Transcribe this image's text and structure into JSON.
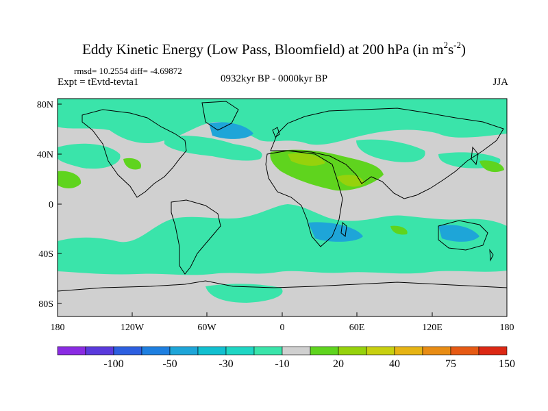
{
  "title": {
    "main": "Eddy Kinetic Energy (Low Pass, Bloomfield) at 200 hPa (in m",
    "exp1": "2",
    "mid": "s",
    "exp2": "-2",
    "close": ")"
  },
  "stats": "rmsd= 10.2554 diff= -4.69872",
  "expt": "Expt = tEvtd-tevta1",
  "period": "0932kyr BP - 0000kyr BP",
  "season": "JJA",
  "lat_labels": [
    "80N",
    "40N",
    "0",
    "40S",
    "80S"
  ],
  "lon_labels": [
    "180",
    "120W",
    "60W",
    "0",
    "60E",
    "120E",
    "180"
  ],
  "colorbar": {
    "colors": [
      "#8a2be2",
      "#5a3adc",
      "#2d5fe0",
      "#1e7fe0",
      "#1ea5d8",
      "#12c0d0",
      "#1fd6c4",
      "#3ae4aa",
      "#d0d0d0",
      "#5fd41e",
      "#96d20c",
      "#c8d010",
      "#e6b414",
      "#e88c14",
      "#e65a14",
      "#dc2814"
    ],
    "labels": [
      "-100",
      "-50",
      "-30",
      "-10",
      "20",
      "40",
      "75",
      "150"
    ]
  },
  "legend_colors": {
    "background": "#d0d0d0",
    "teal": "#3ae4aa",
    "blue": "#1ea5d8",
    "green": "#5fd41e",
    "yellowgreen": "#96d20c"
  }
}
